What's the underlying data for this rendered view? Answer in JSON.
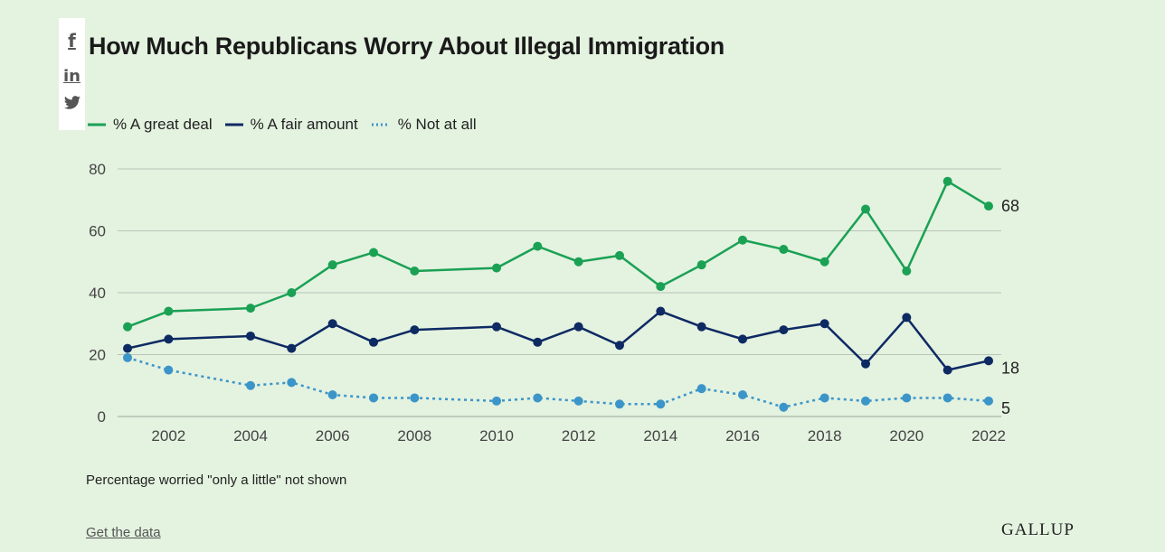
{
  "share": {
    "facebook": "f",
    "linkedin": "in",
    "twitter": "twitter-icon"
  },
  "colors": {
    "background": "#e4f2e0",
    "great_deal": "#1aa154",
    "fair_amount": "#0e2a63",
    "not_at_all": "#3b95c8"
  },
  "chart_data": {
    "type": "line",
    "title": "How Much Republicans Worry About Illegal Immigration",
    "xlabel": "",
    "ylabel": "",
    "ylim": [
      0,
      80
    ],
    "xlim": [
      2001,
      2022
    ],
    "yticks": [
      0,
      20,
      40,
      60,
      80
    ],
    "xticks": [
      2002,
      2004,
      2006,
      2008,
      2010,
      2012,
      2014,
      2016,
      2018,
      2020,
      2022
    ],
    "grid": true,
    "legend_position": "top-left",
    "x": [
      2001,
      2002,
      2004,
      2005,
      2006,
      2007,
      2008,
      2010,
      2011,
      2012,
      2013,
      2014,
      2015,
      2016,
      2017,
      2018,
      2019,
      2020,
      2021,
      2022
    ],
    "series": [
      {
        "name": "% A great deal",
        "style": "solid",
        "color": "#1aa154",
        "values": [
          29,
          34,
          35,
          40,
          49,
          53,
          47,
          48,
          55,
          50,
          52,
          42,
          49,
          57,
          54,
          50,
          67,
          47,
          76,
          68
        ],
        "end_label": "68"
      },
      {
        "name": "% A fair amount",
        "style": "solid",
        "color": "#0e2a63",
        "values": [
          22,
          25,
          26,
          22,
          30,
          24,
          28,
          29,
          24,
          29,
          23,
          34,
          29,
          25,
          28,
          30,
          17,
          32,
          15,
          18
        ],
        "end_label": "18"
      },
      {
        "name": "% Not at all",
        "style": "dotted",
        "color": "#3b95c8",
        "values": [
          19,
          15,
          10,
          11,
          7,
          6,
          6,
          5,
          6,
          5,
          4,
          4,
          9,
          7,
          3,
          6,
          5,
          6,
          6,
          5
        ],
        "end_label": "5"
      }
    ]
  },
  "footer": {
    "note": "Percentage worried \"only a little\" not shown",
    "get_data": "Get the data",
    "brand": "GALLUP"
  }
}
